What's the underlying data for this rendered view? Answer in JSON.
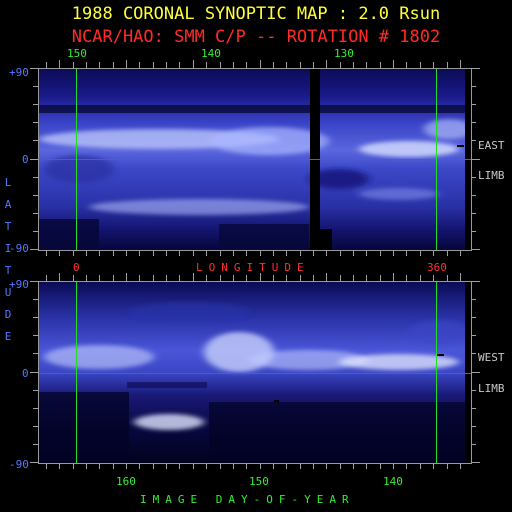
{
  "title": "1988 CORONAL SYNOPTIC MAP : 2.0 Rsun",
  "subtitle": "NCAR/HAO: SMM C/P -- ROTATION # 1802",
  "top_axis_ticks": [
    "150",
    "140",
    "130"
  ],
  "longitude_ticks": [
    "0",
    "360"
  ],
  "longitude_label": "LONGITUDE",
  "bottom_axis_ticks": [
    "160",
    "150",
    "140"
  ],
  "bottom_axis_label": "IMAGE DAY-OF-YEAR",
  "latitude_label": "LATITUDE",
  "lat_ticks_top": [
    "+90",
    "0",
    "-90"
  ],
  "lat_ticks_bottom": [
    "+90",
    "0",
    "-90"
  ],
  "east_label": "EAST",
  "east_limb_label": "LIMB",
  "west_label": "WEST",
  "west_limb_label": "LIMB",
  "colors": {
    "title": "#ffff3a",
    "subtitle": "#ff2a2a",
    "green_axis": "#33ee33",
    "latitude_axis": "#5577ff",
    "equator_line": "#ff2020",
    "longitude_marker_lines": "#22dd22",
    "background": "#000000",
    "corona_base": "#1a1a9a",
    "corona_bright": "#e8ecff"
  }
}
